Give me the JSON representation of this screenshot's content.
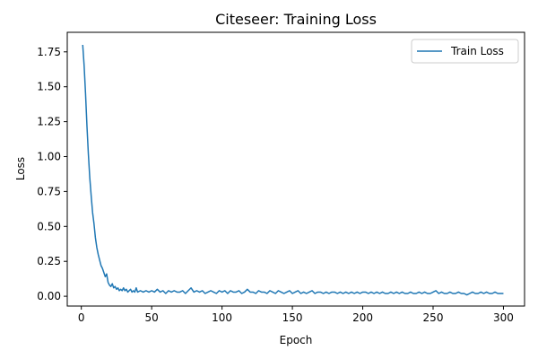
{
  "chart_data": {
    "type": "line",
    "title": "Citeseer: Training Loss",
    "xlabel": "Epoch",
    "ylabel": "Loss",
    "xlim": [
      -10.0,
      315.0
    ],
    "ylim": [
      -0.07,
      1.89
    ],
    "x_ticks": [
      0,
      50,
      100,
      150,
      200,
      250,
      300
    ],
    "y_ticks": [
      0.0,
      0.25,
      0.5,
      0.75,
      1.0,
      1.25,
      1.5,
      1.75
    ],
    "x_tick_labels": [
      "0",
      "50",
      "100",
      "150",
      "200",
      "250",
      "300"
    ],
    "y_tick_labels": [
      "0.00",
      "0.25",
      "0.50",
      "0.75",
      "1.00",
      "1.25",
      "1.50",
      "1.75"
    ],
    "grid": false,
    "legend_position": "top-right",
    "series": [
      {
        "name": "Train Loss",
        "color": "#1f77b4",
        "x": [
          1,
          2,
          3,
          4,
          5,
          6,
          7,
          8,
          9,
          10,
          11,
          12,
          13,
          14,
          15,
          16,
          17,
          18,
          19,
          20,
          21,
          22,
          23,
          24,
          25,
          26,
          27,
          28,
          29,
          30,
          31,
          32,
          33,
          34,
          35,
          36,
          37,
          38,
          39,
          40,
          42,
          44,
          46,
          48,
          50,
          52,
          54,
          56,
          58,
          60,
          62,
          64,
          66,
          68,
          70,
          72,
          74,
          76,
          78,
          80,
          82,
          84,
          86,
          88,
          90,
          92,
          94,
          96,
          98,
          100,
          102,
          104,
          106,
          108,
          110,
          112,
          114,
          116,
          118,
          120,
          122,
          124,
          126,
          128,
          130,
          132,
          134,
          136,
          138,
          140,
          142,
          144,
          146,
          148,
          150,
          152,
          154,
          156,
          158,
          160,
          162,
          164,
          166,
          168,
          170,
          172,
          174,
          176,
          178,
          180,
          182,
          184,
          186,
          188,
          190,
          192,
          194,
          196,
          198,
          200,
          202,
          204,
          206,
          208,
          210,
          212,
          214,
          216,
          218,
          220,
          222,
          224,
          226,
          228,
          230,
          232,
          234,
          236,
          238,
          240,
          242,
          244,
          246,
          248,
          250,
          252,
          254,
          256,
          258,
          260,
          262,
          264,
          266,
          268,
          270,
          272,
          274,
          276,
          278,
          280,
          282,
          284,
          286,
          288,
          290,
          292,
          294,
          296,
          298,
          300
        ],
        "y": [
          1.8,
          1.65,
          1.45,
          1.22,
          1.02,
          0.85,
          0.72,
          0.6,
          0.52,
          0.42,
          0.35,
          0.3,
          0.26,
          0.22,
          0.2,
          0.17,
          0.14,
          0.16,
          0.1,
          0.08,
          0.07,
          0.09,
          0.06,
          0.07,
          0.05,
          0.06,
          0.04,
          0.05,
          0.04,
          0.06,
          0.04,
          0.05,
          0.03,
          0.04,
          0.05,
          0.03,
          0.04,
          0.03,
          0.06,
          0.03,
          0.04,
          0.03,
          0.04,
          0.03,
          0.04,
          0.03,
          0.05,
          0.03,
          0.04,
          0.02,
          0.04,
          0.03,
          0.04,
          0.03,
          0.03,
          0.04,
          0.02,
          0.04,
          0.06,
          0.03,
          0.04,
          0.03,
          0.04,
          0.02,
          0.03,
          0.04,
          0.03,
          0.02,
          0.04,
          0.03,
          0.04,
          0.02,
          0.04,
          0.03,
          0.03,
          0.04,
          0.02,
          0.03,
          0.05,
          0.03,
          0.03,
          0.02,
          0.04,
          0.03,
          0.03,
          0.02,
          0.04,
          0.03,
          0.02,
          0.04,
          0.03,
          0.02,
          0.03,
          0.04,
          0.02,
          0.03,
          0.04,
          0.02,
          0.03,
          0.02,
          0.03,
          0.04,
          0.02,
          0.03,
          0.03,
          0.02,
          0.03,
          0.02,
          0.03,
          0.03,
          0.02,
          0.03,
          0.02,
          0.03,
          0.02,
          0.03,
          0.02,
          0.03,
          0.02,
          0.03,
          0.03,
          0.02,
          0.03,
          0.02,
          0.03,
          0.02,
          0.03,
          0.02,
          0.02,
          0.03,
          0.02,
          0.03,
          0.02,
          0.03,
          0.02,
          0.02,
          0.03,
          0.02,
          0.02,
          0.03,
          0.02,
          0.03,
          0.02,
          0.02,
          0.03,
          0.04,
          0.02,
          0.03,
          0.02,
          0.02,
          0.03,
          0.02,
          0.02,
          0.03,
          0.02,
          0.02,
          0.01,
          0.02,
          0.03,
          0.02,
          0.02,
          0.03,
          0.02,
          0.03,
          0.02,
          0.02,
          0.03,
          0.02,
          0.02,
          0.02
        ]
      }
    ]
  }
}
